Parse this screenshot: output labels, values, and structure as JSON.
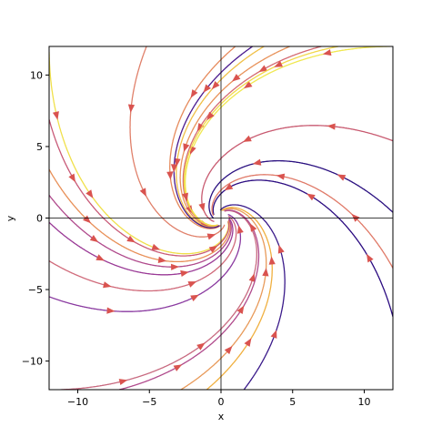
{
  "chart_data": {
    "type": "streamplot",
    "title": "",
    "xlabel": "x",
    "ylabel": "y",
    "xlim": [
      -12,
      12
    ],
    "ylim": [
      -12,
      12
    ],
    "xticks": [
      -10,
      -5,
      0,
      5,
      10
    ],
    "yticks": [
      -10,
      -5,
      0,
      5,
      10
    ],
    "xtick_labels": [
      "−10",
      "−5",
      "0",
      "5",
      "10"
    ],
    "ytick_labels": [
      "−10",
      "−5",
      "0",
      "5",
      "10"
    ],
    "reference_lines": {
      "horizontal_y": 0,
      "vertical_x": 0
    },
    "grid": false,
    "legend": "none",
    "colormap": "plasma",
    "field": {
      "dx": "-x - y",
      "dy": "x - y",
      "description_hidden": true
    },
    "streamlines": [
      {
        "start": [
          -12,
          11.6
        ],
        "color": "#f0e04a"
      },
      {
        "start": [
          4.8,
          12
        ],
        "color": "#e8925a"
      },
      {
        "start": [
          -12,
          6.9
        ],
        "color": "#c85a78"
      },
      {
        "start": [
          -12,
          3.4
        ],
        "color": "#e89058"
      },
      {
        "start": [
          -12,
          1.6
        ],
        "color": "#b04a8c"
      },
      {
        "start": [
          -12,
          -0.3
        ],
        "color": "#9a3a96"
      },
      {
        "start": [
          -12,
          -5.5
        ],
        "color": "#8a3aa0"
      },
      {
        "start": [
          -11.2,
          -12
        ],
        "color": "#c86a80"
      },
      {
        "start": [
          -7.1,
          -12
        ],
        "color": "#b04a8c"
      },
      {
        "start": [
          -2.8,
          -12
        ],
        "color": "#e89a5a"
      },
      {
        "start": [
          -1.0,
          -12
        ],
        "color": "#f0b040"
      },
      {
        "start": [
          1.6,
          -12
        ],
        "color": "#3a1a8a"
      },
      {
        "start": [
          12,
          -6.9
        ],
        "color": "#2a0a80"
      },
      {
        "start": [
          12,
          0.4
        ],
        "color": "#2a1080"
      },
      {
        "start": [
          12,
          5.4
        ],
        "color": "#c85a70"
      },
      {
        "start": [
          11.8,
          12
        ],
        "color": "#f0e850"
      },
      {
        "start": [
          7.0,
          12
        ],
        "color": "#d46a72"
      },
      {
        "start": [
          1.0,
          12
        ],
        "color": "#e68a5c"
      },
      {
        "start": [
          3.0,
          12
        ],
        "color": "#f0c048"
      },
      {
        "start": [
          -5.2,
          12
        ],
        "color": "#e0806a"
      },
      {
        "start": [
          8.2,
          12
        ],
        "color": "#f2d84a"
      },
      {
        "start": [
          -12,
          -3.0
        ],
        "color": "#d06a7a"
      },
      {
        "start": [
          12,
          -3.5
        ],
        "color": "#e07a68"
      },
      {
        "start": [
          2.2,
          12
        ],
        "color": "#4a1a8e"
      }
    ]
  }
}
